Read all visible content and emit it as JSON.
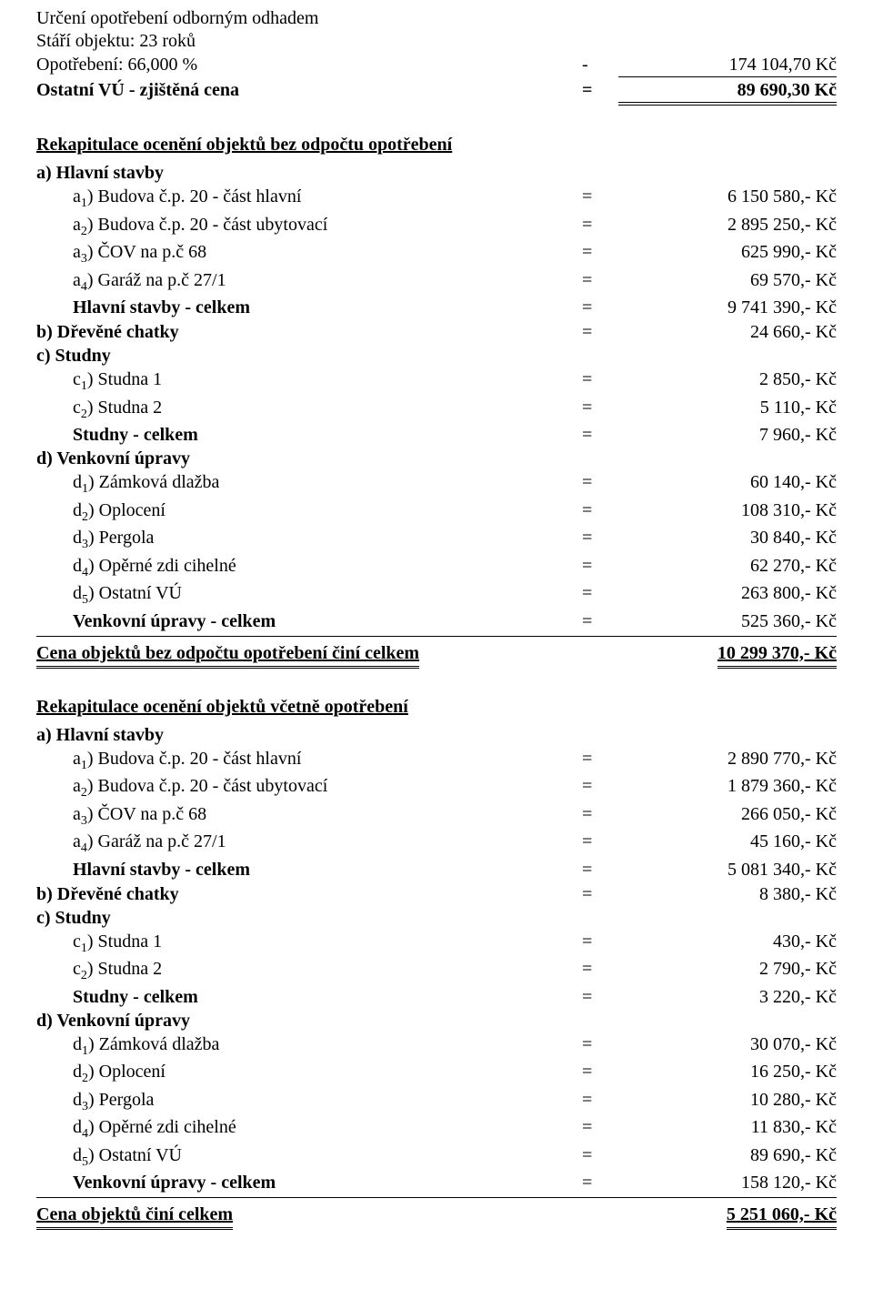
{
  "header": {
    "title": "Určení opotřebení odborným odhadem",
    "age_line": "Stáří objektu: 23 roků",
    "wear_label": "Opotřebení: 66,000 %",
    "wear_sign": "-",
    "wear_value": "174 104,70 Kč",
    "net_label": "Ostatní VÚ - zjištěná cena",
    "net_sign": "=",
    "net_value": "89 690,30 Kč"
  },
  "recap_gross": {
    "heading": "Rekapitulace ocenění objektů bez odpočtu opotřebení",
    "a_heading": "a) Hlavní stavby",
    "a_items": [
      {
        "pre": "a",
        "sub": "1",
        "suf": ") Budova č.p. 20 - část hlavní",
        "val": "6 150 580,- Kč"
      },
      {
        "pre": "a",
        "sub": "2",
        "suf": ") Budova č.p. 20 - část ubytovací",
        "val": "2 895 250,- Kč"
      },
      {
        "pre": "a",
        "sub": "3",
        "suf": ") ČOV na p.č 68",
        "val": "625 990,- Kč"
      },
      {
        "pre": "a",
        "sub": "4",
        "suf": ") Garáž na p.č 27/1",
        "val": "69 570,- Kč"
      }
    ],
    "a_total": {
      "label": "Hlavní stavby - celkem",
      "val": "9 741 390,- Kč"
    },
    "b": {
      "label": "b) Dřevěné chatky",
      "val": "24 660,- Kč"
    },
    "c_heading": "c) Studny",
    "c_items": [
      {
        "pre": "c",
        "sub": "1",
        "suf": ") Studna 1",
        "val": "2 850,- Kč"
      },
      {
        "pre": "c",
        "sub": "2",
        "suf": ") Studna 2",
        "val": "5 110,- Kč"
      }
    ],
    "c_total": {
      "label": "Studny - celkem",
      "val": "7 960,- Kč"
    },
    "d_heading": "d) Venkovní úpravy",
    "d_items": [
      {
        "pre": "d",
        "sub": "1",
        "suf": ") Zámková dlažba",
        "val": "60 140,- Kč"
      },
      {
        "pre": "d",
        "sub": "2",
        "suf": ") Oplocení",
        "val": "108 310,- Kč"
      },
      {
        "pre": "d",
        "sub": "3",
        "suf": ") Pergola",
        "val": "30 840,- Kč"
      },
      {
        "pre": "d",
        "sub": "4",
        "suf": ") Opěrné zdi cihelné",
        "val": "62 270,- Kč"
      },
      {
        "pre": "d",
        "sub": "5",
        "suf": ") Ostatní VÚ",
        "val": "263 800,- Kč"
      }
    ],
    "d_total": {
      "label": "Venkovní úpravy - celkem",
      "val": "525 360,- Kč"
    },
    "grand": {
      "label": "Cena objektů bez odpočtu opotřebení činí celkem",
      "val": "10 299 370,- Kč"
    }
  },
  "recap_net": {
    "heading": "Rekapitulace ocenění objektů včetně opotřebení",
    "a_heading": "a) Hlavní stavby",
    "a_items": [
      {
        "pre": "a",
        "sub": "1",
        "suf": ") Budova č.p. 20 - část hlavní",
        "val": "2 890 770,- Kč"
      },
      {
        "pre": "a",
        "sub": "2",
        "suf": ") Budova č.p. 20 - část ubytovací",
        "val": "1 879 360,- Kč"
      },
      {
        "pre": "a",
        "sub": "3",
        "suf": ") ČOV na p.č 68",
        "val": "266 050,- Kč"
      },
      {
        "pre": "a",
        "sub": "4",
        "suf": ") Garáž na p.č 27/1",
        "val": "45 160,- Kč"
      }
    ],
    "a_total": {
      "label": "Hlavní stavby - celkem",
      "val": "5 081 340,- Kč"
    },
    "b": {
      "label": "b) Dřevěné chatky",
      "val": "8 380,- Kč"
    },
    "c_heading": "c) Studny",
    "c_items": [
      {
        "pre": "c",
        "sub": "1",
        "suf": ") Studna 1",
        "val": "430,- Kč"
      },
      {
        "pre": "c",
        "sub": "2",
        "suf": ") Studna 2",
        "val": "2 790,- Kč"
      }
    ],
    "c_total": {
      "label": "Studny - celkem",
      "val": "3 220,- Kč"
    },
    "d_heading": "d) Venkovní úpravy",
    "d_items": [
      {
        "pre": "d",
        "sub": "1",
        "suf": ") Zámková dlažba",
        "val": "30 070,- Kč"
      },
      {
        "pre": "d",
        "sub": "2",
        "suf": ") Oplocení",
        "val": "16 250,- Kč"
      },
      {
        "pre": "d",
        "sub": "3",
        "suf": ") Pergola",
        "val": "10 280,- Kč"
      },
      {
        "pre": "d",
        "sub": "4",
        "suf": ") Opěrné zdi cihelné",
        "val": "11 830,- Kč"
      },
      {
        "pre": "d",
        "sub": "5",
        "suf": ") Ostatní VÚ",
        "val": "89 690,- Kč"
      }
    ],
    "d_total": {
      "label": "Venkovní úpravy - celkem",
      "val": "158 120,- Kč"
    },
    "grand": {
      "label": "Cena objektů činí celkem",
      "val": "5 251 060,- Kč"
    }
  }
}
